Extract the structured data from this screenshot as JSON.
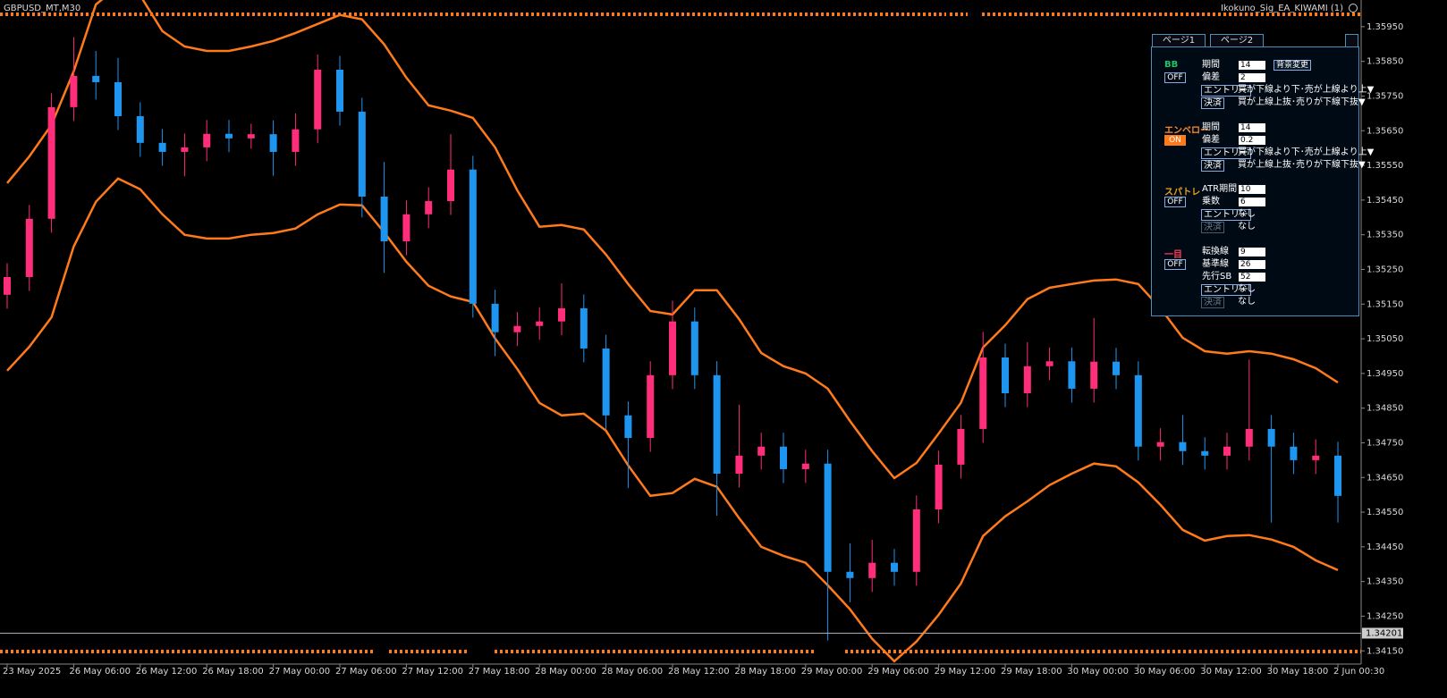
{
  "chart_data": {
    "type": "candlestick",
    "title": "GBPUSD_MT,M30",
    "indicator_name": "Ikokuno_Sig_EA_KIWAMI (1)",
    "x": [
      0,
      4,
      8,
      12,
      16,
      20,
      24,
      28,
      32,
      36,
      40,
      44,
      48,
      52,
      56,
      60,
      64,
      68,
      72,
      76,
      80,
      84,
      88,
      92,
      96,
      100,
      104,
      108,
      112,
      116,
      120,
      124,
      128,
      132,
      136,
      140,
      144,
      148,
      152,
      156,
      160,
      164,
      168,
      172,
      176,
      180,
      184,
      188,
      192,
      196,
      200,
      204,
      208,
      212,
      216,
      220,
      224,
      228,
      232,
      236,
      240
    ],
    "open": [
      1.35177,
      1.35228,
      1.35396,
      1.35718,
      1.35808,
      1.3579,
      1.35692,
      1.35615,
      1.35589,
      1.35602,
      1.35641,
      1.35628,
      1.3564,
      1.35589,
      1.35654,
      1.35826,
      1.35705,
      1.3546,
      1.35331,
      1.35409,
      1.35447,
      1.35538,
      1.35151,
      1.35069,
      1.35087,
      1.351,
      1.35138,
      1.35022,
      1.34829,
      1.34764,
      1.34945,
      1.351,
      1.34945,
      1.34661,
      1.34713,
      1.34739,
      1.34674,
      1.3469,
      1.34378,
      1.3436,
      1.34404,
      1.34378,
      1.34558,
      1.34687,
      1.3479,
      1.34996,
      1.34893,
      1.34971,
      1.34985,
      1.34906,
      1.34984,
      1.34945,
      1.34739,
      1.34752,
      1.34726,
      1.34713,
      1.34739,
      1.3479,
      1.34739,
      1.347,
      1.34713
    ],
    "high": [
      1.35268,
      1.35436,
      1.35758,
      1.3592,
      1.3588,
      1.3586,
      1.35732,
      1.35655,
      1.35642,
      1.35681,
      1.35681,
      1.3567,
      1.3568,
      1.357,
      1.3587,
      1.35866,
      1.35745,
      1.3556,
      1.35449,
      1.35487,
      1.3564,
      1.35578,
      1.35191,
      1.35127,
      1.3514,
      1.3521,
      1.35178,
      1.35062,
      1.34869,
      1.34985,
      1.3516,
      1.3514,
      1.34985,
      1.3486,
      1.34779,
      1.34779,
      1.3473,
      1.3473,
      1.3446,
      1.3447,
      1.34444,
      1.34598,
      1.34727,
      1.3483,
      1.3507,
      1.35036,
      1.3504,
      1.35025,
      1.35025,
      1.3511,
      1.35024,
      1.34985,
      1.34792,
      1.3483,
      1.34766,
      1.34779,
      1.3499,
      1.3483,
      1.34779,
      1.3476,
      1.34753
    ],
    "low": [
      1.35137,
      1.35188,
      1.35356,
      1.35678,
      1.3574,
      1.35652,
      1.35575,
      1.35549,
      1.35519,
      1.35562,
      1.35588,
      1.35598,
      1.3552,
      1.35549,
      1.35614,
      1.35665,
      1.354,
      1.3524,
      1.35291,
      1.35369,
      1.35407,
      1.35111,
      1.35,
      1.35029,
      1.35047,
      1.3506,
      1.34982,
      1.34789,
      1.3462,
      1.34724,
      1.34905,
      1.34905,
      1.3454,
      1.34621,
      1.34673,
      1.34634,
      1.34634,
      1.3418,
      1.3429,
      1.3432,
      1.34338,
      1.34338,
      1.34518,
      1.34647,
      1.3475,
      1.34853,
      1.34853,
      1.34931,
      1.34866,
      1.34866,
      1.34905,
      1.34699,
      1.34699,
      1.34686,
      1.34673,
      1.34673,
      1.34699,
      1.3452,
      1.3466,
      1.3466,
      1.3452
    ],
    "close": [
      1.35228,
      1.35396,
      1.35718,
      1.35808,
      1.3579,
      1.35692,
      1.35615,
      1.35589,
      1.35602,
      1.35641,
      1.35628,
      1.3564,
      1.35589,
      1.35654,
      1.35826,
      1.35705,
      1.3546,
      1.35331,
      1.35409,
      1.35447,
      1.35538,
      1.35151,
      1.35069,
      1.35087,
      1.351,
      1.35138,
      1.35022,
      1.34829,
      1.34764,
      1.34945,
      1.351,
      1.34945,
      1.34661,
      1.34713,
      1.34739,
      1.34674,
      1.3469,
      1.34378,
      1.3436,
      1.34404,
      1.34378,
      1.34558,
      1.34687,
      1.3479,
      1.34996,
      1.34893,
      1.34971,
      1.34985,
      1.34906,
      1.34984,
      1.34945,
      1.34739,
      1.34752,
      1.34726,
      1.34713,
      1.34739,
      1.3479,
      1.34739,
      1.347,
      1.34713,
      1.34597
    ],
    "up_color": "#ff2d7a",
    "down_color": "#1e96f0",
    "bands": {
      "color": "#ff7a1a",
      "upper": [
        1.35499,
        1.35576,
        1.35667,
        1.35821,
        1.36014,
        1.36066,
        1.3604,
        1.35937,
        1.35893,
        1.3588,
        1.3588,
        1.35893,
        1.35909,
        1.35932,
        1.35958,
        1.35984,
        1.35971,
        1.35899,
        1.35803,
        1.35723,
        1.35708,
        1.35687,
        1.35602,
        1.35478,
        1.35373,
        1.35378,
        1.35365,
        1.35293,
        1.35208,
        1.3513,
        1.3512,
        1.3519,
        1.3519,
        1.35107,
        1.35009,
        1.34971,
        1.3495,
        1.34906,
        1.34813,
        1.34726,
        1.34648,
        1.34692,
        1.34777,
        1.34865,
        1.35025,
        1.35089,
        1.35164,
        1.35197,
        1.35208,
        1.35218,
        1.35221,
        1.35208,
        1.35138,
        1.35053,
        1.35014,
        1.35007,
        1.35014,
        1.35007,
        1.34991,
        1.34965,
        1.34924
      ],
      "lower": [
        1.34958,
        1.35027,
        1.35112,
        1.35316,
        1.35445,
        1.35512,
        1.35481,
        1.35409,
        1.3535,
        1.35339,
        1.35339,
        1.3535,
        1.35355,
        1.35368,
        1.35409,
        1.35437,
        1.35435,
        1.35357,
        1.35272,
        1.35203,
        1.35172,
        1.35156,
        1.35051,
        1.34963,
        1.34865,
        1.34829,
        1.34834,
        1.34785,
        1.34685,
        1.34597,
        1.34605,
        1.34646,
        1.34623,
        1.34533,
        1.3445,
        1.34424,
        1.34404,
        1.34339,
        1.3427,
        1.34185,
        1.3412,
        1.34177,
        1.34254,
        1.34344,
        1.34481,
        1.34538,
        1.34581,
        1.34628,
        1.34661,
        1.3469,
        1.34682,
        1.34636,
        1.34571,
        1.34499,
        1.34468,
        1.34481,
        1.34484,
        1.34471,
        1.3445,
        1.34411,
        1.34383
      ]
    },
    "current_price": 1.34201,
    "xlim": [
      -1.29,
      244.19
    ],
    "xticks": [
      {
        "value": 0,
        "label": "23 May 2025"
      },
      {
        "value": 12,
        "label": "26 May 06:00"
      },
      {
        "value": 24,
        "label": "26 May 12:00"
      },
      {
        "value": 36,
        "label": "26 May 18:00"
      },
      {
        "value": 48,
        "label": "27 May 00:00"
      },
      {
        "value": 60,
        "label": "27 May 06:00"
      },
      {
        "value": 72,
        "label": "27 May 12:00"
      },
      {
        "value": 84,
        "label": "27 May 18:00"
      },
      {
        "value": 96,
        "label": "28 May 00:00"
      },
      {
        "value": 108,
        "label": "28 May 06:00"
      },
      {
        "value": 120,
        "label": "28 May 12:00"
      },
      {
        "value": 132,
        "label": "28 May 18:00"
      },
      {
        "value": 144,
        "label": "29 May 00:00"
      },
      {
        "value": 156,
        "label": "29 May 06:00"
      },
      {
        "value": 168,
        "label": "29 May 12:00"
      },
      {
        "value": 180,
        "label": "29 May 18:00"
      },
      {
        "value": 192,
        "label": "30 May 00:00"
      },
      {
        "value": 204,
        "label": "30 May 06:00"
      },
      {
        "value": 216,
        "label": "30 May 12:00"
      },
      {
        "value": 228,
        "label": "30 May 18:00"
      },
      {
        "value": 240,
        "label": "2 Jun 00:30"
      }
    ],
    "ylim": [
      1.34112,
      1.36027
    ],
    "yticks": [
      {
        "value": 1.3595,
        "label": "1.35950"
      },
      {
        "value": 1.3585,
        "label": "1.35850"
      },
      {
        "value": 1.3575,
        "label": "1.35750"
      },
      {
        "value": 1.3565,
        "label": "1.35650"
      },
      {
        "value": 1.3555,
        "label": "1.35550"
      },
      {
        "value": 1.3545,
        "label": "1.35450"
      },
      {
        "value": 1.3535,
        "label": "1.35350"
      },
      {
        "value": 1.3525,
        "label": "1.35250"
      },
      {
        "value": 1.3515,
        "label": "1.35150"
      },
      {
        "value": 1.3505,
        "label": "1.35050"
      },
      {
        "value": 1.3495,
        "label": "1.34950"
      },
      {
        "value": 1.3485,
        "label": "1.34850"
      },
      {
        "value": 1.3475,
        "label": "1.34750"
      },
      {
        "value": 1.3465,
        "label": "1.34650"
      },
      {
        "value": 1.3455,
        "label": "1.34550"
      },
      {
        "value": 1.3445,
        "label": "1.34450"
      },
      {
        "value": 1.3435,
        "label": "1.34350"
      },
      {
        "value": 1.3425,
        "label": "1.34250"
      },
      {
        "value": 1.3415,
        "label": "1.34150"
      }
    ],
    "grid": false
  },
  "panel": {
    "tabs": [
      "ページ1",
      "ページ2"
    ],
    "bg_button": "背景変更",
    "sections": [
      {
        "name": "BB",
        "color": "#1fc46a",
        "state": "OFF",
        "rows": [
          {
            "label": "期間",
            "value": "14"
          },
          {
            "label": "偏差",
            "value": "2"
          },
          {
            "label": "エントリー",
            "value": "買が下線より下･売が上線より上▼"
          },
          {
            "label": "決済",
            "value": "買が上線上抜･売りが下線下抜▼"
          }
        ]
      },
      {
        "name": "エンベロー",
        "color": "#ff8a2a",
        "state": "ON",
        "rows": [
          {
            "label": "期間",
            "value": "14"
          },
          {
            "label": "偏差",
            "value": "0.2"
          },
          {
            "label": "エントリー",
            "value": "買が下線より下･売が上線より上▼"
          },
          {
            "label": "決済",
            "value": "買が上線上抜･売りが下線下抜▼"
          }
        ]
      },
      {
        "name": "スパトレ",
        "color": "#e8a020",
        "state": "OFF",
        "rows": [
          {
            "label": "ATR期間",
            "value": "10"
          },
          {
            "label": "乗数",
            "value": "6"
          },
          {
            "label": "エントリー",
            "value": "なし"
          },
          {
            "label": "決済",
            "value": "なし"
          }
        ]
      },
      {
        "name": "一目",
        "color": "#ff3a5a",
        "state": "OFF",
        "rows": [
          {
            "label": "転換線",
            "value": "9"
          },
          {
            "label": "基準線",
            "value": "26"
          },
          {
            "label": "先行SB",
            "value": "52"
          },
          {
            "label": "エントリー",
            "value": "なし"
          },
          {
            "label": "決済",
            "value": "なし"
          }
        ]
      }
    ]
  }
}
